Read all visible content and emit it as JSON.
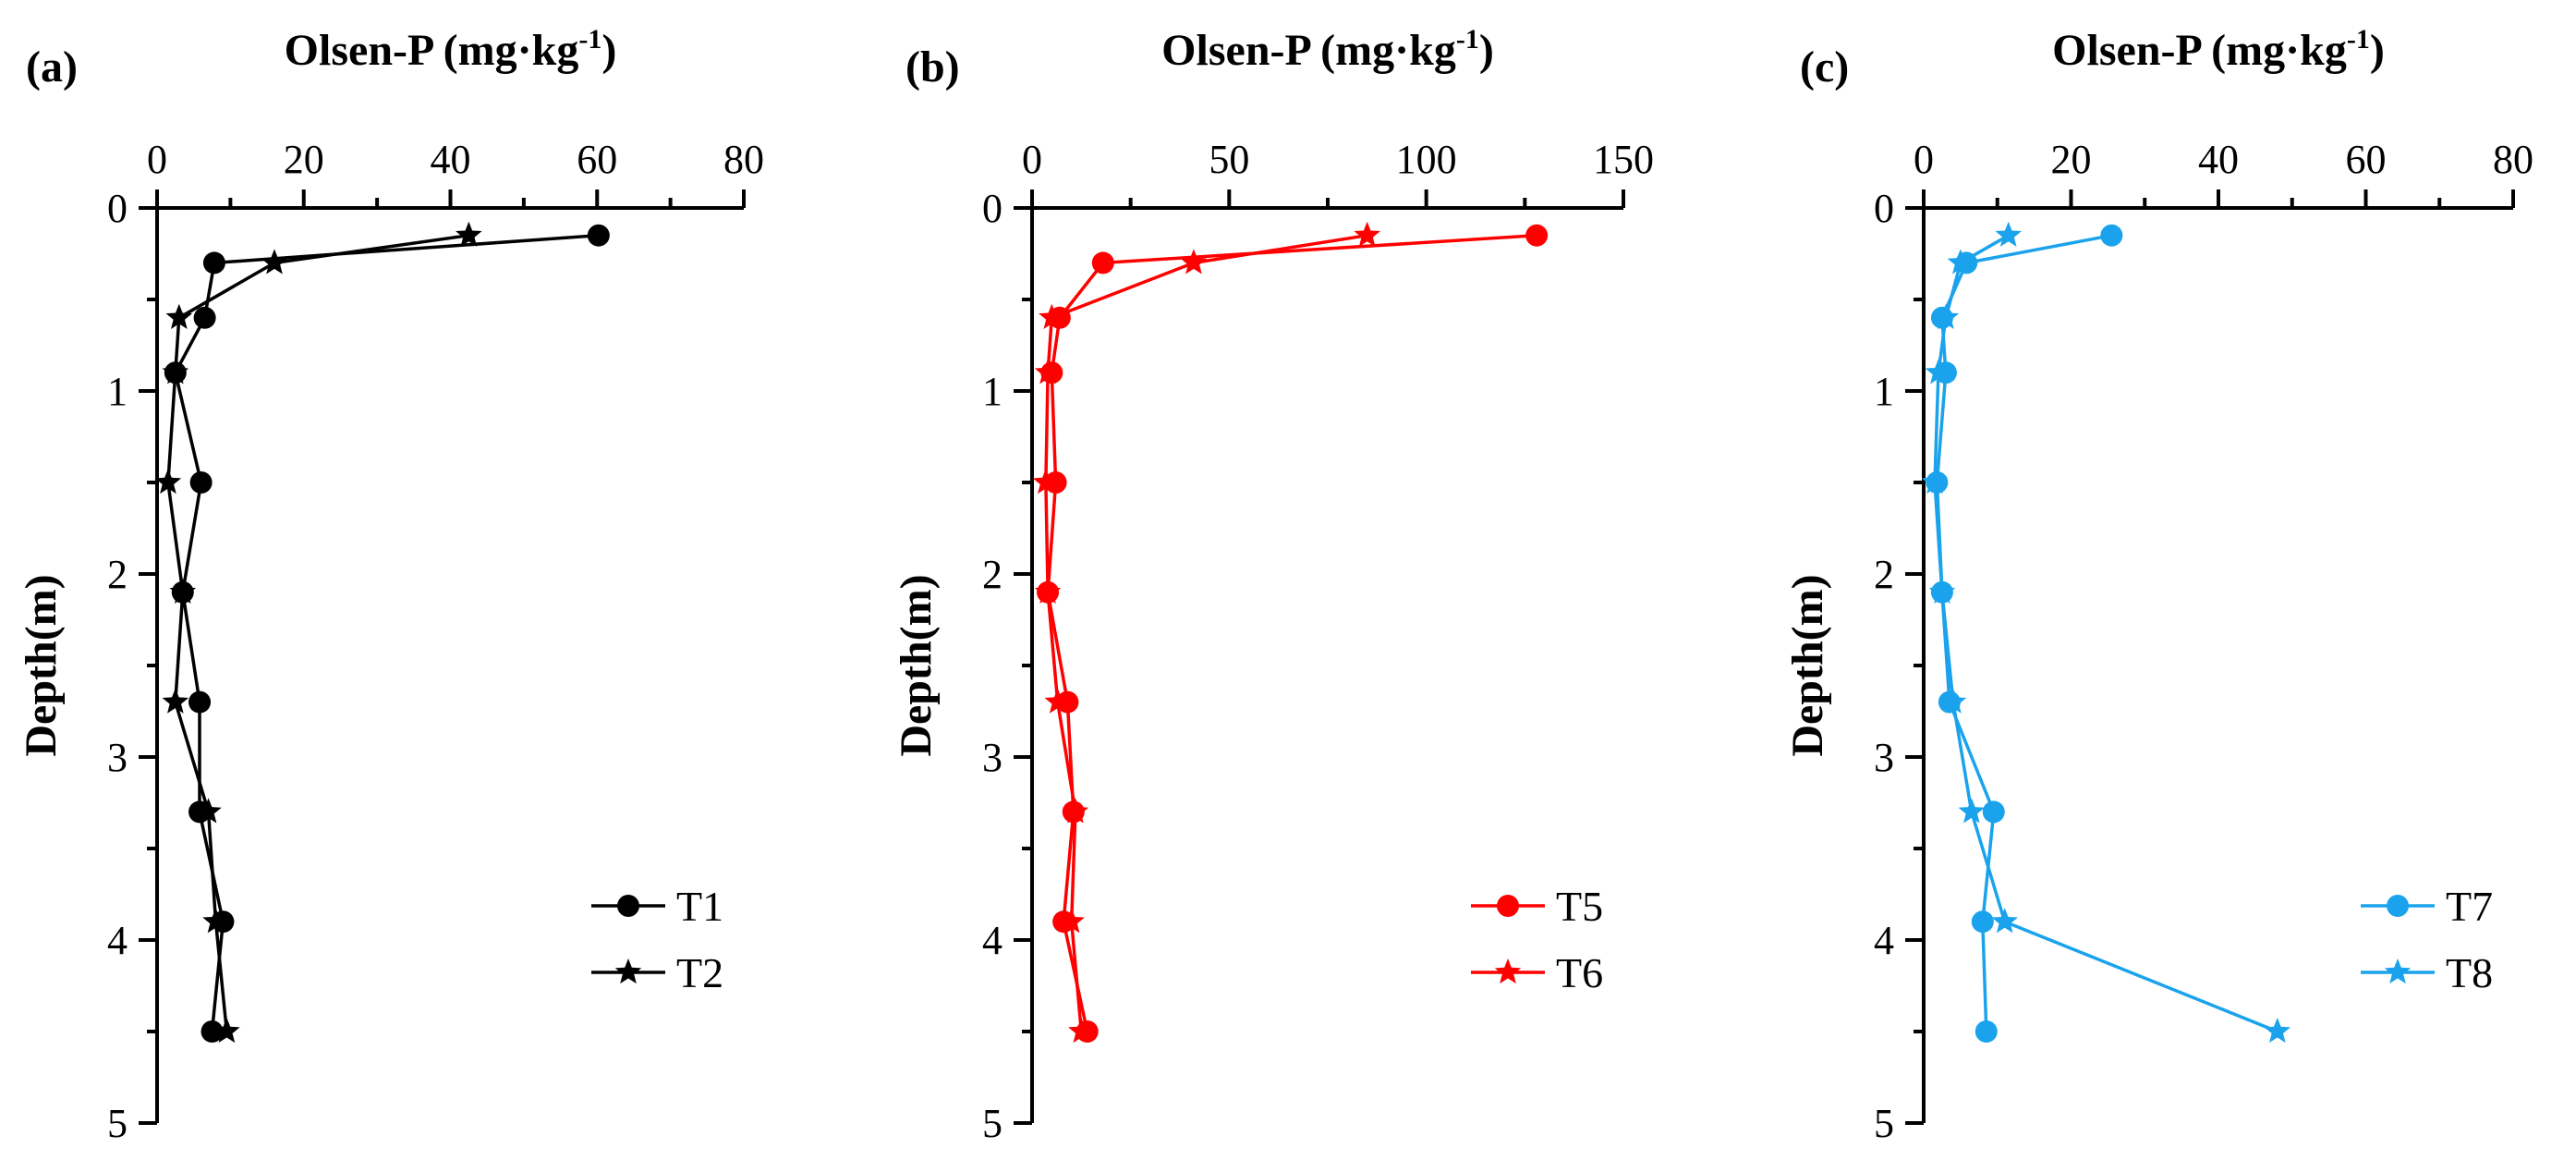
{
  "figure": {
    "background": "#ffffff"
  },
  "chart_data": [
    {
      "type": "line",
      "panel_label": "(a)",
      "xlabel": "Olsen-P (mg·kg",
      "xlabel_sup": "-1",
      "xlabel_close": ")",
      "ylabel": "Depth(m)",
      "xlim": [
        0,
        80
      ],
      "ylim": [
        0,
        5
      ],
      "y_inverted": true,
      "x_axis_position": "top",
      "x_ticks": [
        0,
        20,
        40,
        60,
        80
      ],
      "x_tick_labels": [
        "0",
        "20",
        "40",
        "60",
        "80"
      ],
      "y_ticks": [
        0,
        1,
        2,
        3,
        4,
        5
      ],
      "y_tick_labels": [
        "0",
        "1",
        "2",
        "3",
        "4",
        "5"
      ],
      "grid": false,
      "legend_position": "right",
      "color": "#000000",
      "series": [
        {
          "name": "T1",
          "marker": "circle",
          "points": [
            [
              60.2,
              0.15
            ],
            [
              7.8,
              0.3
            ],
            [
              6.5,
              0.6
            ],
            [
              2.5,
              0.9
            ],
            [
              6.0,
              1.5
            ],
            [
              3.5,
              2.1
            ],
            [
              5.8,
              2.7
            ],
            [
              5.8,
              3.3
            ],
            [
              9.0,
              3.9
            ],
            [
              7.5,
              4.5
            ]
          ]
        },
        {
          "name": "T2",
          "marker": "star",
          "points": [
            [
              42.5,
              0.15
            ],
            [
              16.0,
              0.3
            ],
            [
              3.0,
              0.6
            ],
            [
              2.5,
              0.9
            ],
            [
              1.5,
              1.5
            ],
            [
              3.5,
              2.1
            ],
            [
              2.5,
              2.7
            ],
            [
              7.0,
              3.3
            ],
            [
              8.0,
              3.9
            ],
            [
              9.5,
              4.5
            ]
          ]
        }
      ]
    },
    {
      "type": "line",
      "panel_label": "(b)",
      "xlabel": "Olsen-P (mg·kg",
      "xlabel_sup": "-1",
      "xlabel_close": ")",
      "ylabel": "Depth(m)",
      "xlim": [
        0,
        150
      ],
      "ylim": [
        0,
        5
      ],
      "y_inverted": true,
      "x_axis_position": "top",
      "x_ticks": [
        0,
        50,
        100,
        150
      ],
      "x_tick_labels": [
        "0",
        "50",
        "100",
        "150"
      ],
      "y_ticks": [
        0,
        1,
        2,
        3,
        4,
        5
      ],
      "y_tick_labels": [
        "0",
        "1",
        "2",
        "3",
        "4",
        "5"
      ],
      "grid": false,
      "legend_position": "right",
      "color": "#ff0000",
      "series": [
        {
          "name": "T5",
          "marker": "circle",
          "points": [
            [
              128.0,
              0.15
            ],
            [
              18.0,
              0.3
            ],
            [
              7.0,
              0.6
            ],
            [
              5.0,
              0.9
            ],
            [
              6.0,
              1.5
            ],
            [
              4.0,
              2.1
            ],
            [
              9.0,
              2.7
            ],
            [
              10.5,
              3.3
            ],
            [
              8.0,
              3.9
            ],
            [
              14.0,
              4.5
            ]
          ]
        },
        {
          "name": "T6",
          "marker": "star",
          "points": [
            [
              85.0,
              0.15
            ],
            [
              41.0,
              0.3
            ],
            [
              5.0,
              0.6
            ],
            [
              4.0,
              0.9
            ],
            [
              3.5,
              1.5
            ],
            [
              4.0,
              2.1
            ],
            [
              6.5,
              2.7
            ],
            [
              11.0,
              3.3
            ],
            [
              10.0,
              3.9
            ],
            [
              12.5,
              4.5
            ]
          ]
        }
      ]
    },
    {
      "type": "line",
      "panel_label": "(c)",
      "xlabel": "Olsen-P (mg·kg",
      "xlabel_sup": "-1",
      "xlabel_close": ")",
      "ylabel": "Depth(m)",
      "xlim": [
        0,
        80
      ],
      "ylim": [
        0,
        5
      ],
      "y_inverted": true,
      "x_axis_position": "top",
      "x_ticks": [
        0,
        20,
        40,
        60,
        80
      ],
      "x_tick_labels": [
        "0",
        "20",
        "40",
        "60",
        "80"
      ],
      "y_ticks": [
        0,
        1,
        2,
        3,
        4,
        5
      ],
      "y_tick_labels": [
        "0",
        "1",
        "2",
        "3",
        "4",
        "5"
      ],
      "grid": false,
      "legend_position": "right",
      "color": "#1aa3ec",
      "series": [
        {
          "name": "T7",
          "marker": "circle",
          "points": [
            [
              25.5,
              0.15
            ],
            [
              5.8,
              0.3
            ],
            [
              2.5,
              0.6
            ],
            [
              3.0,
              0.9
            ],
            [
              1.8,
              1.5
            ],
            [
              2.5,
              2.1
            ],
            [
              3.5,
              2.7
            ],
            [
              9.5,
              3.3
            ],
            [
              8.0,
              3.9
            ],
            [
              8.5,
              4.5
            ]
          ]
        },
        {
          "name": "T8",
          "marker": "star",
          "points": [
            [
              11.5,
              0.15
            ],
            [
              5.0,
              0.3
            ],
            [
              3.0,
              0.6
            ],
            [
              2.0,
              0.9
            ],
            [
              1.5,
              1.5
            ],
            [
              2.5,
              2.1
            ],
            [
              4.0,
              2.7
            ],
            [
              6.5,
              3.3
            ],
            [
              11.0,
              3.9
            ],
            [
              48.0,
              4.5
            ]
          ]
        }
      ]
    }
  ]
}
